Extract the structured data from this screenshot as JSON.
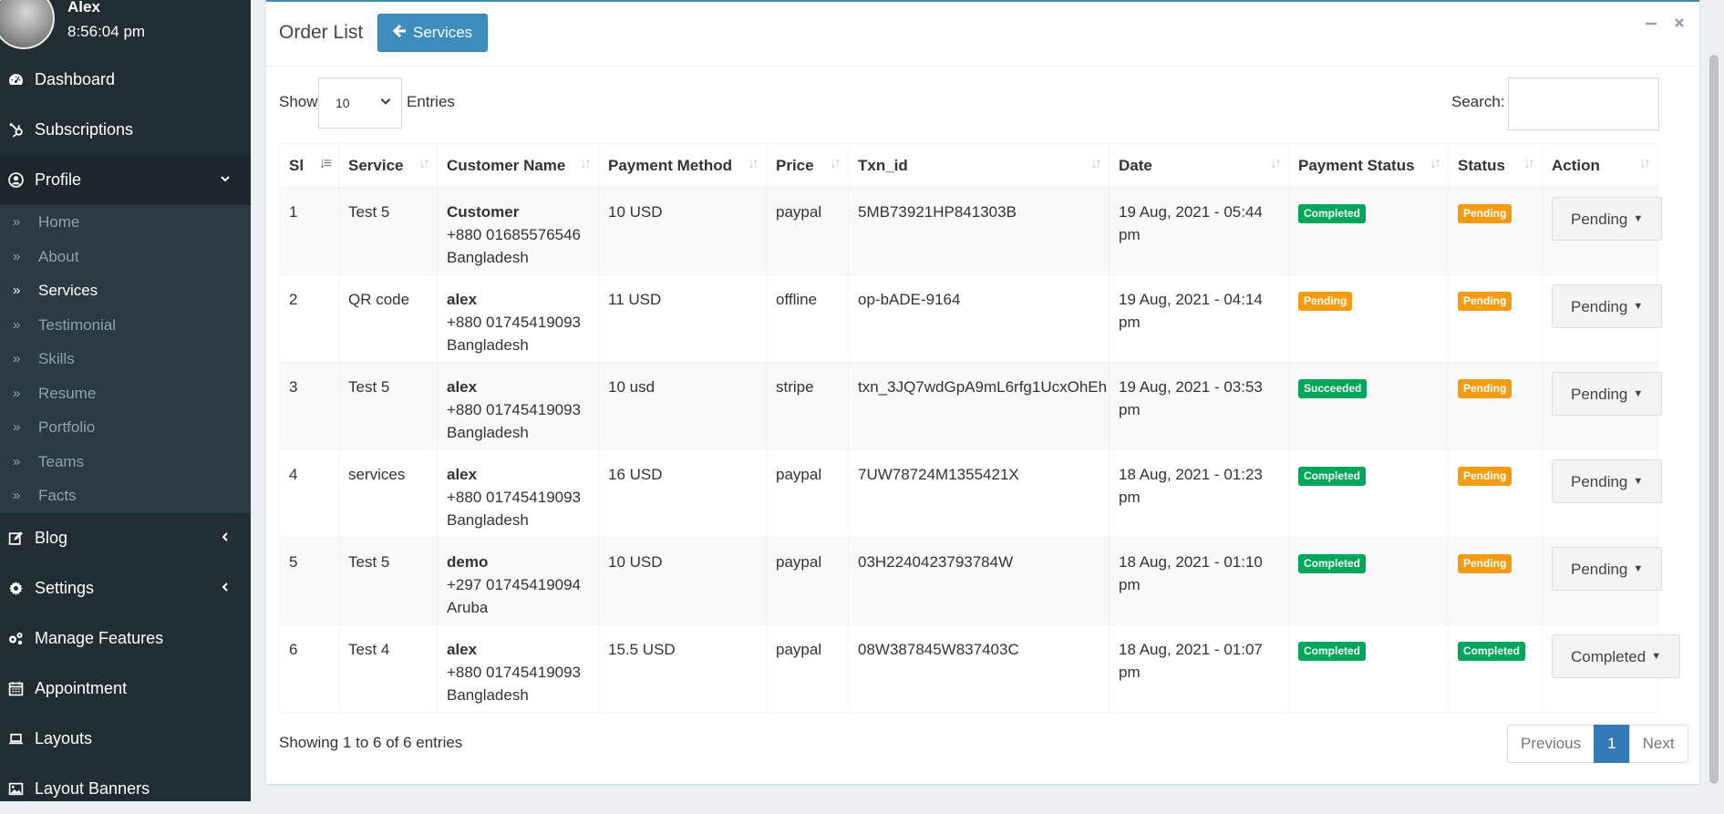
{
  "user": {
    "name": "Alex",
    "time": "8:56:04 pm"
  },
  "sidebar": {
    "items": [
      {
        "label": "Dashboard",
        "icon": "tachometer-icon"
      },
      {
        "label": "Subscriptions",
        "icon": "hubspot-icon"
      },
      {
        "label": "Profile",
        "icon": "user-circle-icon",
        "chevron": "down"
      },
      {
        "label": "Blog",
        "icon": "edit-icon",
        "chevron": "left"
      },
      {
        "label": "Settings",
        "icon": "gear-icon",
        "chevron": "left"
      },
      {
        "label": "Manage Features",
        "icon": "gears-icon"
      },
      {
        "label": "Appointment",
        "icon": "calendar-icon"
      },
      {
        "label": "Layouts",
        "icon": "laptop-icon"
      },
      {
        "label": "Layout Banners",
        "icon": "image-icon"
      }
    ],
    "submenu": [
      "Home",
      "About",
      "Services",
      "Testimonial",
      "Skills",
      "Resume",
      "Portfolio",
      "Teams",
      "Facts"
    ],
    "current_submenu": "Services"
  },
  "box": {
    "title": "Order List",
    "services_button": "Services"
  },
  "controls": {
    "show_label": "Show",
    "entries_value": "10",
    "entries_label": "Entries",
    "search_label": "Search:"
  },
  "table": {
    "headers": [
      "Sl",
      "Service",
      "Customer Name",
      "Payment Method",
      "Price",
      "Txn_id",
      "Date",
      "Payment Status",
      "Status",
      "Action"
    ],
    "rows": [
      {
        "sl": "1",
        "service": "Test 5",
        "cust_name": "Customer",
        "cust_phone": "+880 01685576546",
        "cust_country": "Bangladesh",
        "payment_method": "10 USD",
        "price": "paypal",
        "txn": "5MB73921HP841303B",
        "date": "19 Aug, 2021 - 05:44 pm",
        "payment_status": "Completed",
        "status": "Pending",
        "action": "Pending"
      },
      {
        "sl": "2",
        "service": "QR code",
        "cust_name": "alex",
        "cust_phone": "+880 01745419093",
        "cust_country": "Bangladesh",
        "payment_method": "11 USD",
        "price": "offline",
        "txn": "op-bADE-9164",
        "date": "19 Aug, 2021 - 04:14 pm",
        "payment_status": "Pending",
        "status": "Pending",
        "action": "Pending"
      },
      {
        "sl": "3",
        "service": "Test 5",
        "cust_name": "alex",
        "cust_phone": "+880 01745419093",
        "cust_country": "Bangladesh",
        "payment_method": "10 usd",
        "price": "stripe",
        "txn": "txn_3JQ7wdGpA9mL6rfg1UcxOhEh",
        "date": "19 Aug, 2021 - 03:53 pm",
        "payment_status": "Succeeded",
        "status": "Pending",
        "action": "Pending"
      },
      {
        "sl": "4",
        "service": "services",
        "cust_name": "alex",
        "cust_phone": "+880 01745419093",
        "cust_country": "Bangladesh",
        "payment_method": "16 USD",
        "price": "paypal",
        "txn": "7UW78724M1355421X",
        "date": "18 Aug, 2021 - 01:23 pm",
        "payment_status": "Completed",
        "status": "Pending",
        "action": "Pending"
      },
      {
        "sl": "5",
        "service": "Test 5",
        "cust_name": "demo",
        "cust_phone": "+297 01745419094",
        "cust_country": "Aruba",
        "payment_method": "10 USD",
        "price": "paypal",
        "txn": "03H2240423793784W",
        "date": "18 Aug, 2021 - 01:10 pm",
        "payment_status": "Completed",
        "status": "Pending",
        "action": "Pending"
      },
      {
        "sl": "6",
        "service": "Test 4",
        "cust_name": "alex",
        "cust_phone": "+880 01745419093",
        "cust_country": "Bangladesh",
        "payment_method": "15.5 USD",
        "price": "paypal",
        "txn": "08W387845W837403C",
        "date": "18 Aug, 2021 - 01:07 pm",
        "payment_status": "Completed",
        "status": "Completed",
        "action": "Completed"
      }
    ]
  },
  "footer": {
    "info": "Showing 1 to 6 of 6 entries",
    "previous": "Previous",
    "page": "1",
    "next": "Next"
  },
  "colors": {
    "sidebar": "#222d32",
    "submenu": "#2c3b41",
    "primary": "#3c8dbc",
    "success": "#00a65a",
    "warning": "#f39c12"
  }
}
